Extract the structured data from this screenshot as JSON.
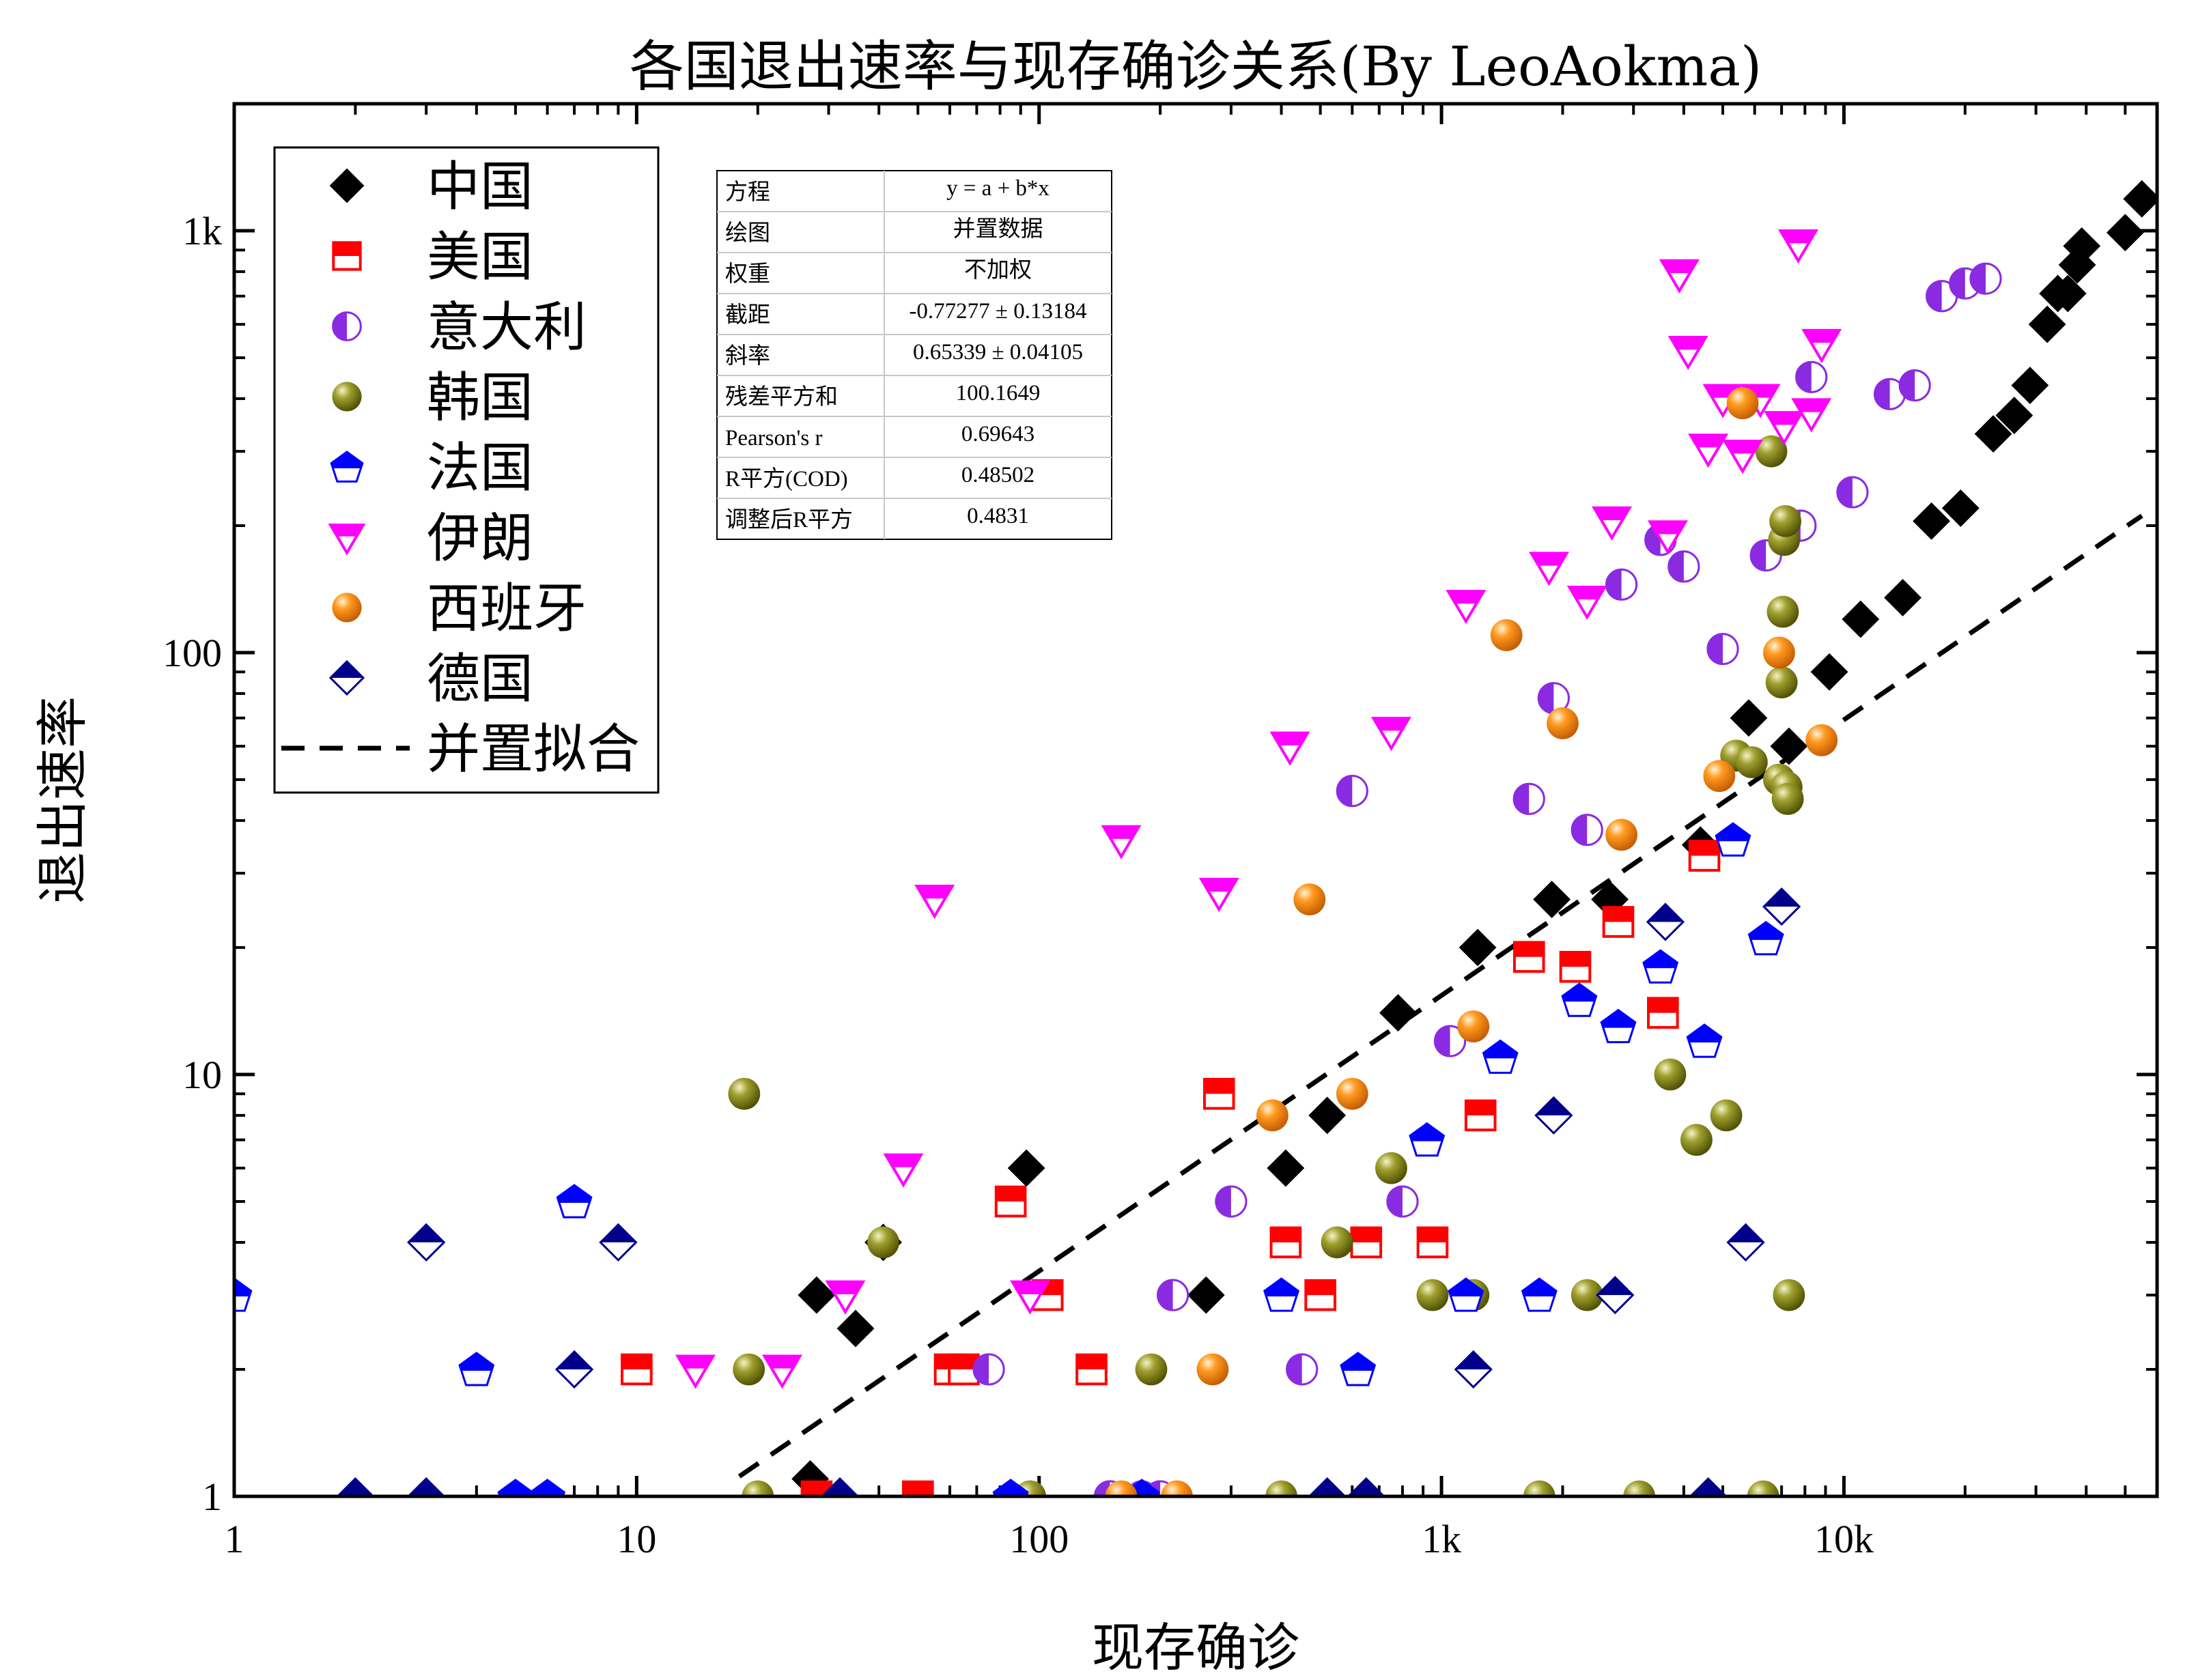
{
  "chart_data": {
    "type": "scatter",
    "title": "各国退出速率与现存确诊关系(By LeoAokma)",
    "xlabel": "现存确诊",
    "ylabel": "退出速率",
    "xscale": "log",
    "yscale": "log",
    "xlim": [
      1,
      60000
    ],
    "ylim": [
      1,
      2000
    ],
    "x_ticks": [
      {
        "value": 1,
        "label": "1"
      },
      {
        "value": 10,
        "label": "10"
      },
      {
        "value": 100,
        "label": "100"
      },
      {
        "value": 1000,
        "label": "1k"
      },
      {
        "value": 10000,
        "label": "10k"
      }
    ],
    "y_ticks": [
      {
        "value": 1,
        "label": "1"
      },
      {
        "value": 10,
        "label": "10"
      },
      {
        "value": 100,
        "label": "100"
      },
      {
        "value": 1000,
        "label": "1k"
      }
    ],
    "legend_position": "top-left",
    "grid": false,
    "fit": {
      "name": "并置拟合",
      "intercept": -0.77277,
      "slope": 0.65339,
      "x_range": [
        18,
        55000
      ],
      "color": "#000000"
    },
    "stats_table": {
      "rows": [
        [
          "方程",
          "y = a + b*x"
        ],
        [
          "绘图",
          "并置数据"
        ],
        [
          "权重",
          "不加权"
        ],
        [
          "截距",
          "-0.77277 ± 0.13184"
        ],
        [
          "斜率",
          "0.65339 ± 0.04105"
        ],
        [
          "残差平方和",
          "100.1649"
        ],
        [
          "Pearson's r",
          "0.69643"
        ],
        [
          "R平方(COD)",
          "0.48502"
        ],
        [
          "调整后R平方",
          "0.4831"
        ]
      ]
    },
    "series": [
      {
        "name": "中国",
        "marker": "diamond",
        "color": "#000000",
        "x": [
          27,
          28,
          35,
          41,
          93,
          260,
          410,
          520,
          780,
          1230,
          1880,
          2620,
          4400,
          5800,
          7300,
          9200,
          11000,
          14000,
          16500,
          19500,
          23500,
          26500,
          29000,
          32000,
          34000,
          36000,
          38000,
          39000,
          50000,
          55000
        ],
        "y": [
          1.1,
          3,
          2.5,
          4,
          6,
          3,
          6,
          8,
          14,
          20,
          26,
          26,
          35,
          70,
          60,
          90,
          120,
          135,
          205,
          220,
          330,
          365,
          430,
          600,
          710,
          710,
          830,
          920,
          990,
          1190
        ]
      },
      {
        "name": "美国",
        "marker": "square-half",
        "color": "#ff0000",
        "x": [
          10,
          28,
          50,
          60,
          65,
          85,
          105,
          135,
          280,
          410,
          500,
          650,
          950,
          1250,
          1650,
          2150,
          2750,
          3550,
          4500
        ],
        "y": [
          2,
          1,
          1,
          2,
          2,
          5,
          3,
          2,
          9,
          4,
          3,
          4,
          4,
          8,
          19,
          18,
          23,
          14,
          33
        ]
      },
      {
        "name": "意大利",
        "marker": "circle-half",
        "color": "#8a2be2",
        "x": [
          75,
          150,
          180,
          200,
          215,
          300,
          450,
          600,
          800,
          1050,
          1650,
          1900,
          2300,
          2800,
          3500,
          4000,
          5000,
          6400,
          7800,
          8300,
          10500,
          13000,
          15000,
          17500,
          20000,
          22500
        ],
        "y": [
          2,
          1,
          1,
          1,
          3,
          5,
          2,
          47,
          5,
          12,
          45,
          78,
          38,
          145,
          185,
          160,
          102,
          170,
          200,
          450,
          240,
          410,
          430,
          700,
          750,
          770
        ]
      },
      {
        "name": "韩国",
        "marker": "circle-olive",
        "color": "#808000",
        "x": [
          18.5,
          19,
          20,
          41,
          95,
          190,
          400,
          550,
          750,
          950,
          1200,
          1750,
          2300,
          3100,
          3700,
          4300,
          5100,
          5400,
          5900,
          6300,
          6600,
          6900,
          7000,
          7050,
          7100,
          7150,
          7200,
          7250,
          7300
        ],
        "y": [
          9,
          2,
          1,
          4,
          1,
          2,
          1,
          4,
          6,
          3,
          3,
          1,
          3,
          1,
          10,
          7,
          8,
          57,
          55,
          1,
          300,
          50,
          85,
          125,
          185,
          205,
          48,
          45,
          3
        ]
      },
      {
        "name": "法国",
        "marker": "pentagon",
        "color": "#0000ff",
        "x": [
          1,
          4,
          5,
          6,
          7,
          85,
          180,
          400,
          620,
          920,
          1150,
          1400,
          1750,
          2200,
          2750,
          3500,
          4500,
          5300,
          6400
        ],
        "y": [
          3,
          2,
          1,
          1,
          5,
          1,
          1,
          3,
          2,
          7,
          3,
          11,
          3,
          15,
          13,
          18,
          12,
          36,
          21
        ]
      },
      {
        "name": "伊朗",
        "marker": "triangle-down",
        "color": "#ff00ff",
        "x": [
          14,
          23,
          33,
          46,
          55,
          95,
          160,
          280,
          420,
          750,
          1150,
          1850,
          2300,
          2650,
          3650,
          3900,
          4100,
          4600,
          5000,
          5600,
          6200,
          7100,
          7700,
          8300,
          8800
        ],
        "y": [
          2,
          2,
          3,
          6,
          26,
          3,
          36,
          27,
          60,
          65,
          130,
          160,
          133,
          205,
          190,
          790,
          520,
          305,
          400,
          295,
          400,
          345,
          930,
          370,
          540
        ]
      },
      {
        "name": "西班牙",
        "marker": "sphere-orange",
        "color": "#ff8c00",
        "x": [
          160,
          220,
          270,
          380,
          470,
          600,
          1200,
          1450,
          2000,
          2800,
          4900,
          5600,
          6900,
          8800
        ],
        "y": [
          1,
          1,
          2,
          8,
          26,
          9,
          13,
          110,
          68,
          37,
          51,
          390,
          100,
          62
        ]
      },
      {
        "name": "德国",
        "marker": "diamond-half",
        "color": "#00008b",
        "x": [
          2,
          3,
          3,
          7,
          9,
          32,
          520,
          650,
          1200,
          1900,
          2700,
          3600,
          4600,
          5700,
          7000
        ],
        "y": [
          1,
          1,
          4,
          2,
          4,
          1,
          1,
          1,
          2,
          8,
          3,
          23,
          1,
          4,
          25
        ]
      }
    ]
  }
}
